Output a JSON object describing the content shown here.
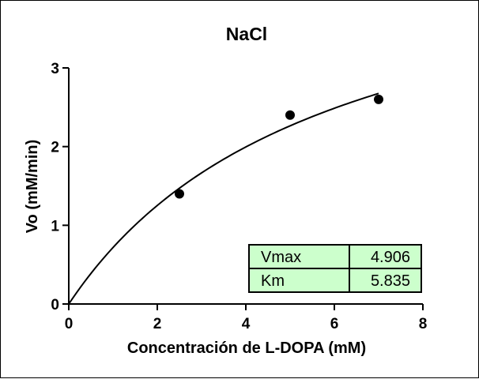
{
  "chart_data": {
    "type": "scatter",
    "title": "NaCl",
    "xlabel": "Concentración de L-DOPA (mM)",
    "ylabel": "Vo (mM/min)",
    "xlim": [
      0,
      8
    ],
    "ylim": [
      0,
      3
    ],
    "x_ticks": [
      "0",
      "2",
      "4",
      "6",
      "8"
    ],
    "y_ticks": [
      "0",
      "1",
      "2",
      "3"
    ],
    "grid": false,
    "series": [
      {
        "x": [
          2.5,
          5.0,
          7.0
        ],
        "y": [
          1.4,
          2.4,
          2.6
        ],
        "marker": "circle",
        "color": "#000000"
      }
    ],
    "fit": {
      "model": "Michaelis-Menten",
      "Vmax": 4.906,
      "Km": 5.835,
      "x_range": [
        0,
        7
      ],
      "color": "#000000"
    },
    "parameter_table": {
      "rows": [
        {
          "name": "Vmax",
          "value": "4.906"
        },
        {
          "name": "Km",
          "value": "5.835"
        }
      ],
      "background": "#ccffcc",
      "placement": "bottom-right"
    }
  }
}
